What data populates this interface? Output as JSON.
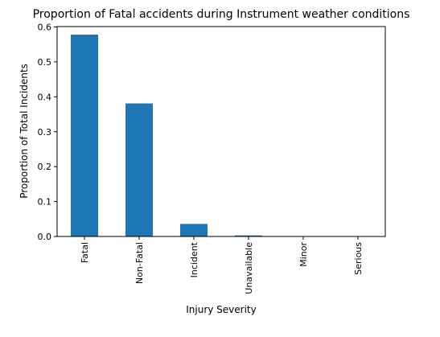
{
  "chart_data": {
    "type": "bar",
    "title": "Proportion of Fatal accidents during Instrument weather conditions",
    "xlabel": "Injury Severity",
    "ylabel": "Proportion of Total Incidents",
    "categories": [
      "Fatal",
      "Non-Fatal",
      "Incident",
      "Unavailable",
      "Minor",
      "Serious"
    ],
    "values": [
      0.578,
      0.381,
      0.036,
      0.003,
      0.0,
      0.0
    ],
    "ylim": [
      0,
      0.6
    ],
    "yticks": [
      "0.0",
      "0.1",
      "0.2",
      "0.3",
      "0.4",
      "0.5",
      "0.6"
    ],
    "grid": false,
    "bar_color": "#1f77b4"
  }
}
